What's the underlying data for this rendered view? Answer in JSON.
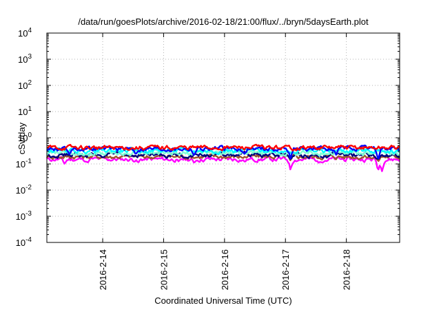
{
  "chart_data": {
    "type": "line",
    "title": "/data/run/goesPlots/archive/2016-02-18/21:00/flux/../bryn/5daysEarth.plot",
    "xlabel": "Coordinated Universal Time (UTC)",
    "ylabel": "cSv/day",
    "yscale": "log",
    "ylim": [
      0.0001,
      10000
    ],
    "xlim": [
      "2016-02-13 02:00",
      "2016-02-18 21:00"
    ],
    "grid": true,
    "legend": "none",
    "y_ticks": [
      {
        "base": "10",
        "exp": "-4",
        "value": 0.0001
      },
      {
        "base": "10",
        "exp": "-3",
        "value": 0.001
      },
      {
        "base": "10",
        "exp": "-2",
        "value": 0.01
      },
      {
        "base": "10",
        "exp": "-1",
        "value": 0.1
      },
      {
        "base": "10",
        "exp": "0",
        "value": 1
      },
      {
        "base": "10",
        "exp": "1",
        "value": 10
      },
      {
        "base": "10",
        "exp": "2",
        "value": 100
      },
      {
        "base": "10",
        "exp": "3",
        "value": 1000
      },
      {
        "base": "10",
        "exp": "4",
        "value": 10000
      }
    ],
    "x_ticks": [
      {
        "label": "2016-2-14",
        "value": "2016-02-14 00:00"
      },
      {
        "label": "2016-2-15",
        "value": "2016-02-15 00:00"
      },
      {
        "label": "2016-2-16",
        "value": "2016-02-16 00:00"
      },
      {
        "label": "2016-2-17",
        "value": "2016-02-17 00:00"
      },
      {
        "label": "2016-2-18",
        "value": "2016-02-18 00:00"
      }
    ],
    "series": [
      {
        "color": "#ff00ff",
        "base": 0.15,
        "dips": [
          [
            "2016-02-13 09:00",
            0.1
          ],
          [
            "2016-02-13 18:00",
            0.11
          ],
          [
            "2016-02-14 14:00",
            0.11
          ],
          [
            "2016-02-15 06:00",
            0.12
          ],
          [
            "2016-02-15 12:00",
            0.11
          ],
          [
            "2016-02-16 08:00",
            0.12
          ],
          [
            "2016-02-17 02:00",
            0.055
          ],
          [
            "2016-02-17 13:00",
            0.11
          ],
          [
            "2016-02-18 12:30",
            0.05
          ],
          [
            "2016-02-18 14:00",
            0.05
          ]
        ]
      },
      {
        "color": "#a0522d",
        "base": 0.19,
        "dips": [
          [
            "2016-02-17 02:00",
            0.13
          ],
          [
            "2016-02-18 12:30",
            0.12
          ]
        ]
      },
      {
        "color": "#000080",
        "base": 0.22,
        "dips": [
          [
            "2016-02-17 02:00",
            0.15
          ],
          [
            "2016-02-18 12:30",
            0.14
          ]
        ]
      },
      {
        "color": "#7fffd4",
        "base": 0.26,
        "dips": []
      },
      {
        "color": "#00ffff",
        "base": 0.32,
        "dips": []
      },
      {
        "color": "#0000ff",
        "base": 0.38,
        "dips": [
          [
            "2016-02-13 11:00",
            0.22
          ],
          [
            "2016-02-14 13:00",
            0.23
          ],
          [
            "2016-02-15 12:00",
            0.21
          ],
          [
            "2016-02-16 08:00",
            0.22
          ],
          [
            "2016-02-17 02:00",
            0.14
          ],
          [
            "2016-02-17 20:00",
            0.22
          ],
          [
            "2016-02-18 12:30",
            0.13
          ]
        ]
      },
      {
        "color": "#ff0000",
        "base": 0.42,
        "dips": []
      }
    ]
  }
}
